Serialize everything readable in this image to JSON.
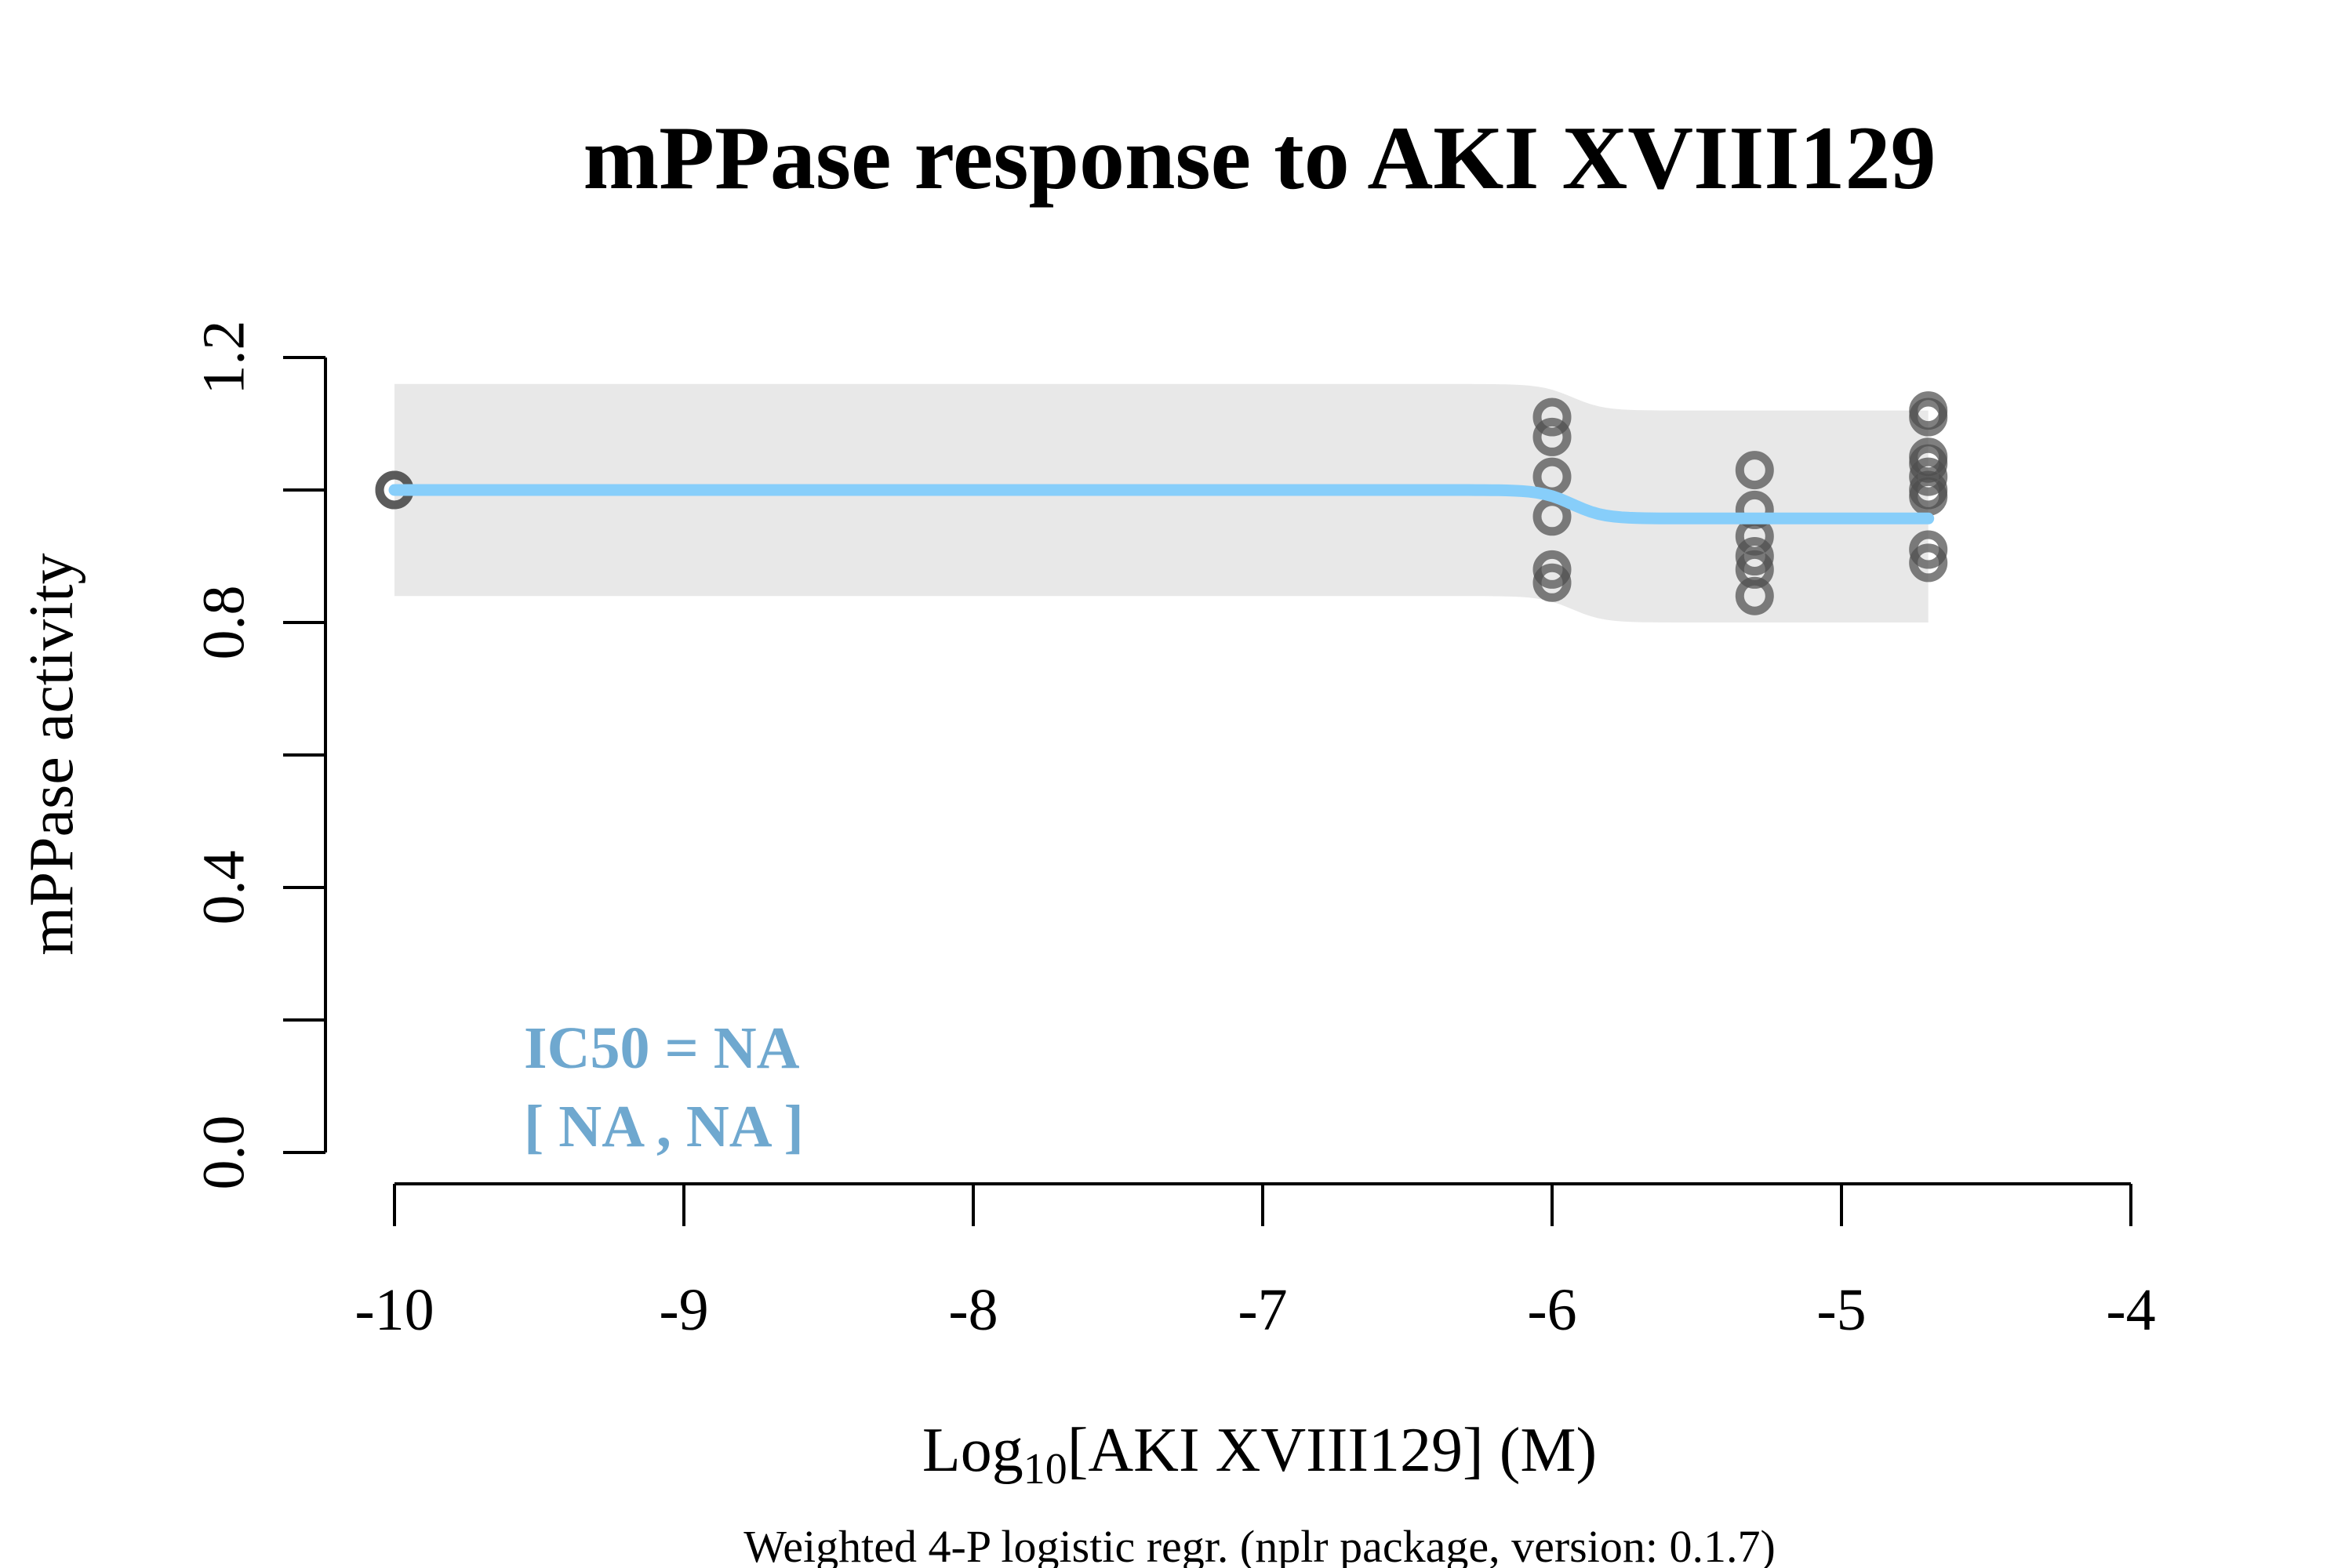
{
  "chart_data": {
    "type": "scatter",
    "title": "mPPase response to AKI XVIII129",
    "xlabel_prefix": "Log",
    "xlabel_subscript": "10",
    "xlabel_suffix": "[AKI XVIII129] (M)",
    "ylabel": "mPPase activity",
    "footnote": "Weighted 4-P logistic regr. (nplr package, version: 0.1.7)",
    "annotation_line1": "IC50 = NA",
    "annotation_line2": "[ NA , NA ]",
    "xlim": [
      -10,
      -4
    ],
    "ylim": [
      0,
      1.2
    ],
    "x_ticks": [
      -10,
      -9,
      -8,
      -7,
      -6,
      -5,
      -4
    ],
    "x_tick_labels": [
      "-10",
      "-9",
      "-8",
      "-7",
      "-6",
      "-5",
      "-4"
    ],
    "y_ticks": [
      0,
      0.2,
      0.4,
      0.6,
      0.8,
      1.0,
      1.2
    ],
    "y_tick_labels": [
      "0.0",
      "",
      "0.4",
      "",
      "0.8",
      "",
      "1.2"
    ],
    "points": [
      {
        "x": -10,
        "y": 1.0
      },
      {
        "x": -10,
        "y": 1.0
      },
      {
        "x": -6,
        "y": 1.11
      },
      {
        "x": -6,
        "y": 1.08
      },
      {
        "x": -6,
        "y": 1.02
      },
      {
        "x": -6,
        "y": 0.96
      },
      {
        "x": -6,
        "y": 0.88
      },
      {
        "x": -6,
        "y": 0.86
      },
      {
        "x": -5.3,
        "y": 1.03
      },
      {
        "x": -5.3,
        "y": 0.97
      },
      {
        "x": -5.3,
        "y": 0.93
      },
      {
        "x": -5.3,
        "y": 0.9
      },
      {
        "x": -5.3,
        "y": 0.88
      },
      {
        "x": -5.3,
        "y": 0.84
      },
      {
        "x": -4.7,
        "y": 1.12
      },
      {
        "x": -4.7,
        "y": 1.11
      },
      {
        "x": -4.7,
        "y": 1.05
      },
      {
        "x": -4.7,
        "y": 1.04
      },
      {
        "x": -4.7,
        "y": 1.02
      },
      {
        "x": -4.7,
        "y": 1.0
      },
      {
        "x": -4.7,
        "y": 0.99
      },
      {
        "x": -4.7,
        "y": 0.91
      },
      {
        "x": -4.7,
        "y": 0.89
      }
    ],
    "fit_curve": {
      "top": 1.0,
      "bottom": 0.957,
      "inflection_log10": -5.93,
      "hill_slope": 8,
      "x_range": [
        -10,
        -4.7
      ]
    },
    "confidence_band": {
      "upper_left": 1.16,
      "upper_right": 1.12,
      "lower_left": 0.84,
      "lower_right": 0.8
    },
    "colors": {
      "curve": "#87cefa",
      "band": "#e8e8e8",
      "points": "#4d4d4d",
      "annotation": "#6fa8cf",
      "axis": "#000000"
    }
  }
}
